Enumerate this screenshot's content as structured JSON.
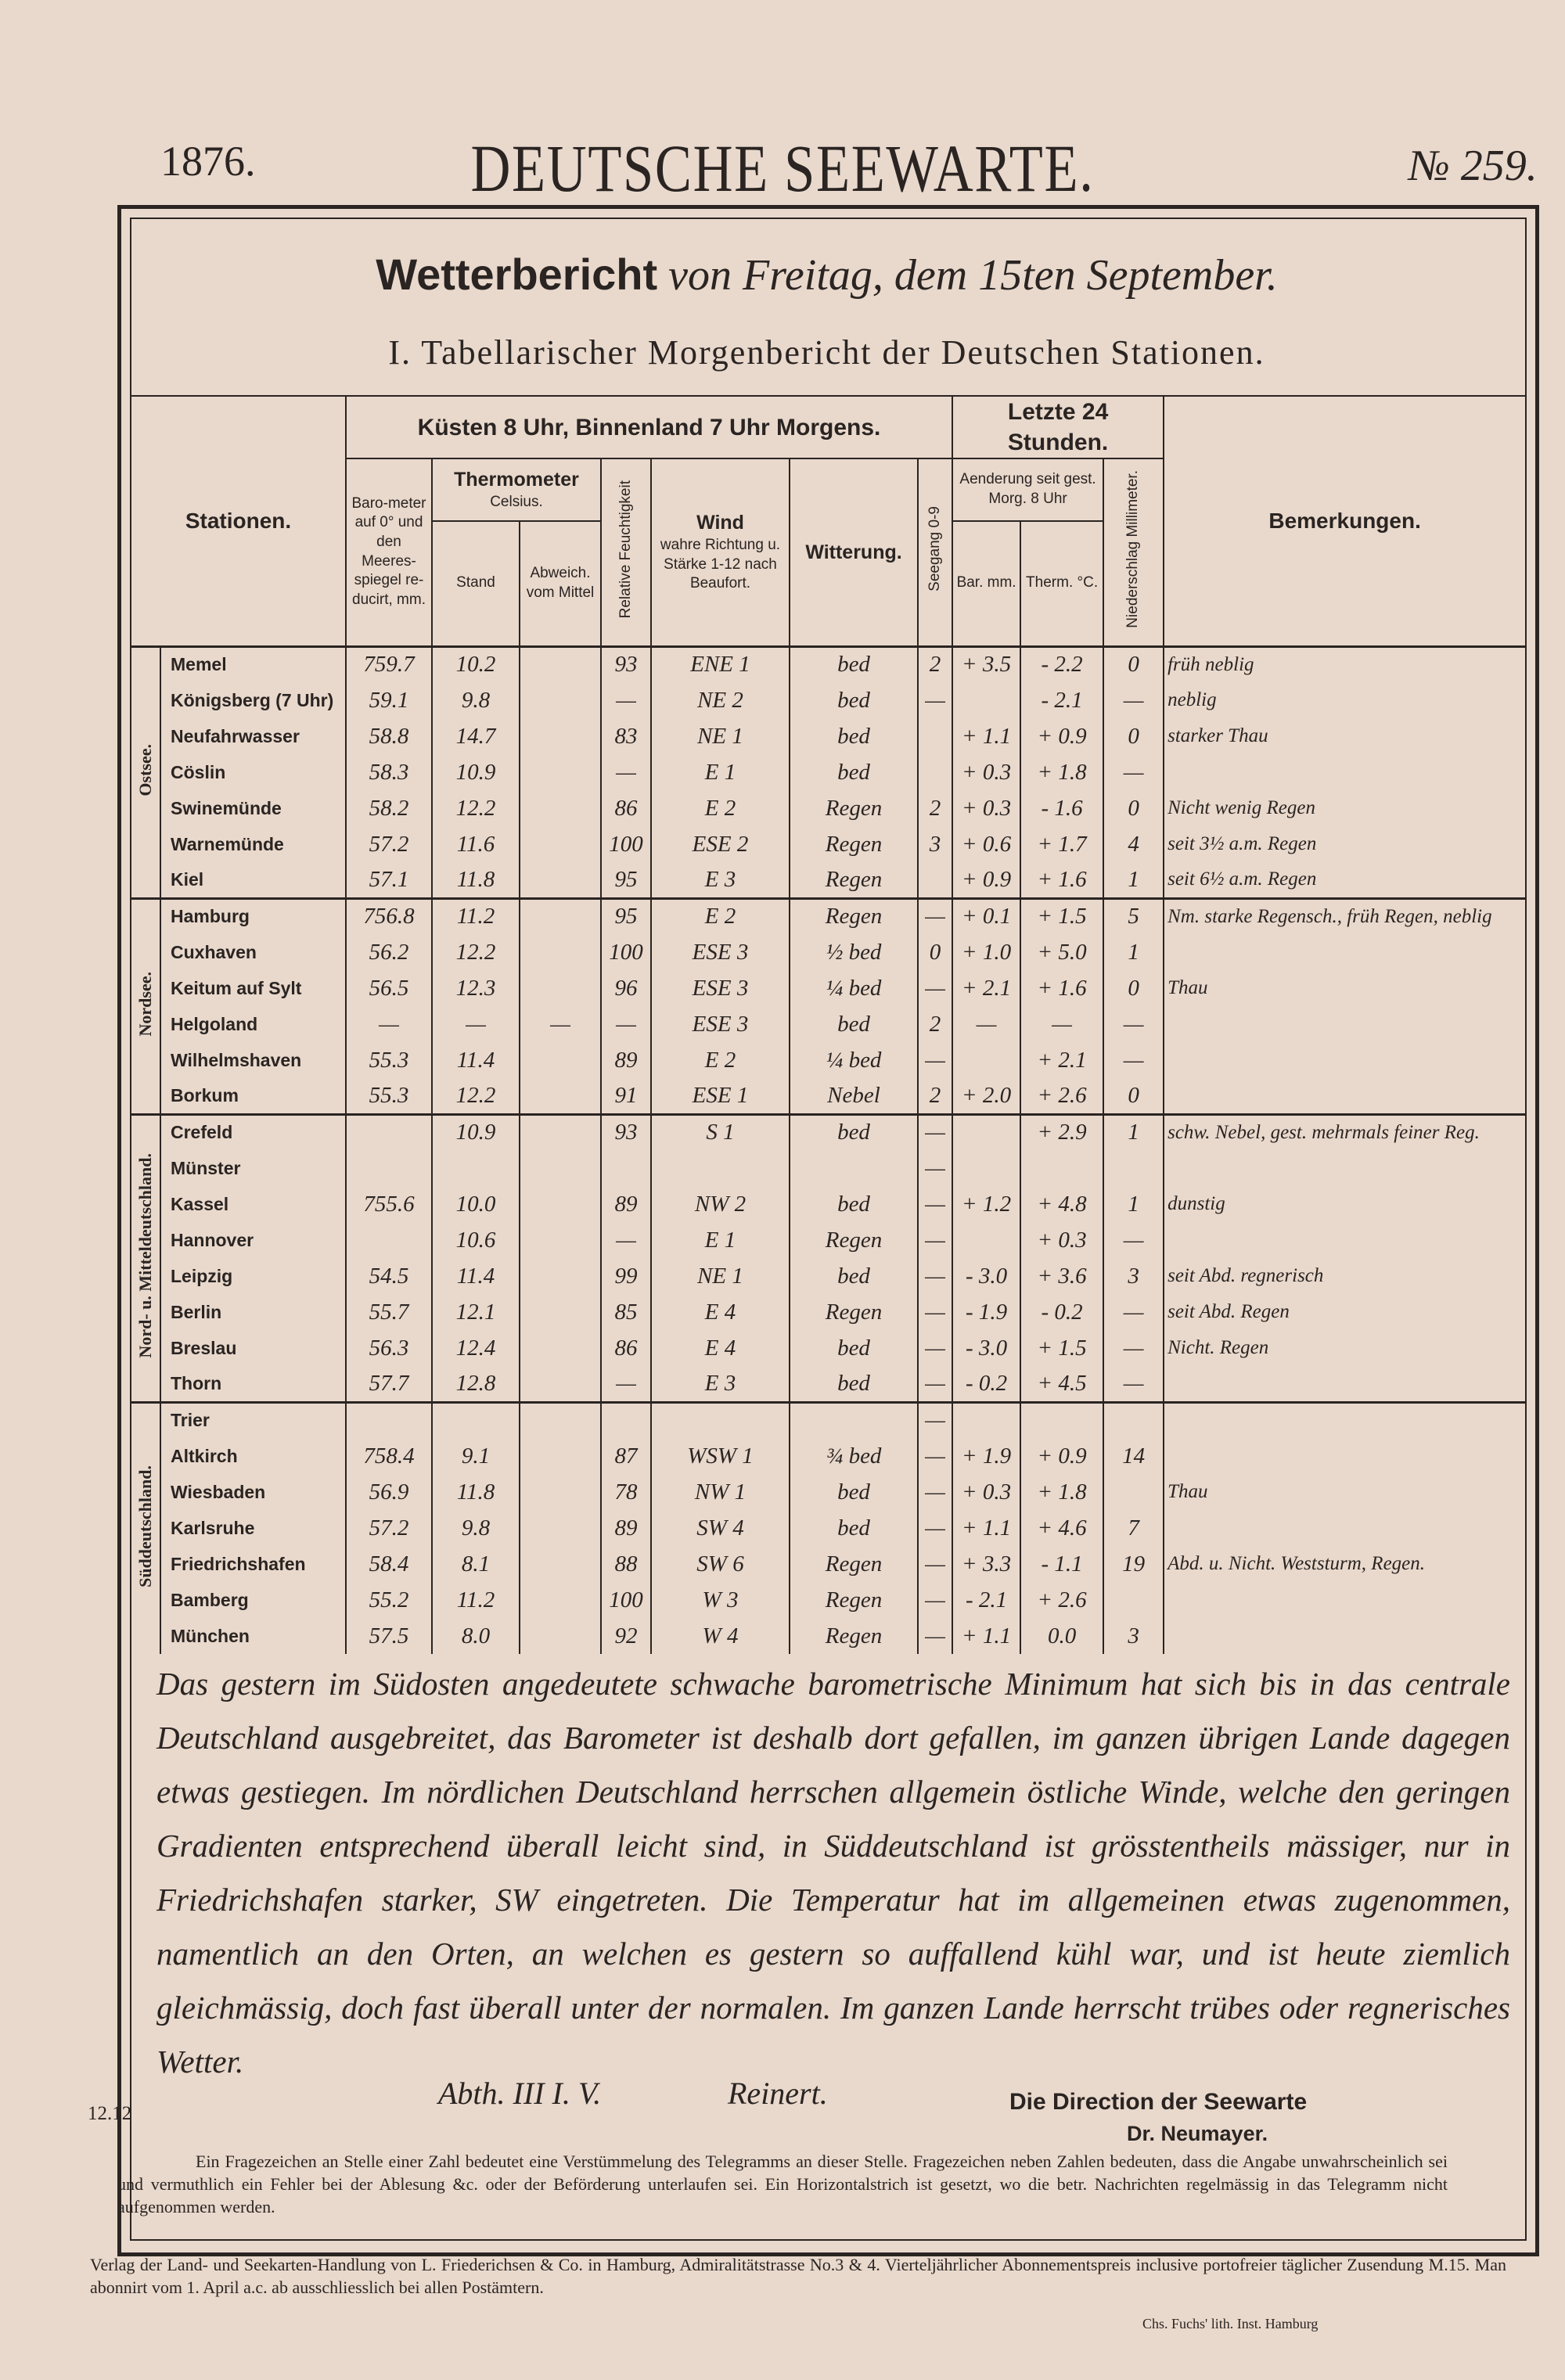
{
  "header": {
    "year": "1876.",
    "title": "DEUTSCHE SEEWARTE.",
    "number": "№ 259."
  },
  "report_title": {
    "label": "Wetterbericht",
    "text": "von Freitag, dem 15ten September."
  },
  "section_title": "I. Tabellarischer Morgenbericht der Deutschen Stationen.",
  "table": {
    "headers": {
      "stations": "Stationen.",
      "morning": "Küsten 8 Uhr, Binnenland 7 Uhr Morgens.",
      "last24": "Letzte 24 Stunden.",
      "barometer": "Baro-meter auf 0° und den Meeres-spiegel re-ducirt, mm.",
      "thermometer": "Thermometer",
      "celsius": "Celsius.",
      "stand": "Stand",
      "abweichung": "Abweich. vom Mittel",
      "humidity": "Relative Feuchtigkeit",
      "wind": "Wind",
      "wind_sub": "wahre Richtung u. Stärke 1-12 nach Beaufort.",
      "weather": "Witterung.",
      "sea": "Seegang 0-9",
      "change": "Aenderung seit gest. Morg. 8 Uhr",
      "change_bar": "Bar. mm.",
      "change_therm": "Therm. °C.",
      "precip": "Niederschlag Millimeter.",
      "remarks": "Bemerkungen."
    },
    "groups": [
      {
        "name": "Ostsee.",
        "rows": [
          [
            "Memel",
            "759.7",
            "10.2",
            null,
            "93",
            "ENE 1",
            "bed",
            "2",
            "+ 3.5",
            "- 2.2",
            "0",
            "früh neblig"
          ],
          [
            "Königsberg (7 Uhr)",
            "59.1",
            "9.8",
            null,
            "—",
            "NE 2",
            "bed",
            "—",
            null,
            "- 2.1",
            "—",
            "neblig"
          ],
          [
            "Neufahrwasser",
            "58.8",
            "14.7",
            null,
            "83",
            "NE 1",
            "bed",
            null,
            "+ 1.1",
            "+ 0.9",
            "0",
            "starker Thau"
          ],
          [
            "Cöslin",
            "58.3",
            "10.9",
            null,
            "—",
            "E 1",
            "bed",
            null,
            "+ 0.3",
            "+ 1.8",
            "—",
            null
          ],
          [
            "Swinemünde",
            "58.2",
            "12.2",
            null,
            "86",
            "E 2",
            "Regen",
            "2",
            "+ 0.3",
            "- 1.6",
            "0",
            "Nicht wenig Regen"
          ],
          [
            "Warnemünde",
            "57.2",
            "11.6",
            null,
            "100",
            "ESE 2",
            "Regen",
            "3",
            "+ 0.6",
            "+ 1.7",
            "4",
            "seit 3½ a.m. Regen"
          ],
          [
            "Kiel",
            "57.1",
            "11.8",
            null,
            "95",
            "E 3",
            "Regen",
            null,
            "+ 0.9",
            "+ 1.6",
            "1",
            "seit 6½ a.m. Regen"
          ]
        ]
      },
      {
        "name": "Nordsee.",
        "rows": [
          [
            "Hamburg",
            "756.8",
            "11.2",
            null,
            "95",
            "E 2",
            "Regen",
            "—",
            "+ 0.1",
            "+ 1.5",
            "5",
            "Nm. starke Regensch., früh Regen, neblig"
          ],
          [
            "Cuxhaven",
            "56.2",
            "12.2",
            null,
            "100",
            "ESE 3",
            "½ bed",
            "0",
            "+ 1.0",
            "+ 5.0",
            "1",
            null
          ],
          [
            "Keitum auf Sylt",
            "56.5",
            "12.3",
            null,
            "96",
            "ESE 3",
            "¼ bed",
            "—",
            "+ 2.1",
            "+ 1.6",
            "0",
            "Thau"
          ],
          [
            "Helgoland",
            "—",
            "—",
            "—",
            "—",
            "ESE 3",
            "bed",
            "2",
            "—",
            "—",
            "—",
            null
          ],
          [
            "Wilhelmshaven",
            "55.3",
            "11.4",
            null,
            "89",
            "E 2",
            "¼ bed",
            "—",
            null,
            "+ 2.1",
            "—",
            null
          ],
          [
            "Borkum",
            "55.3",
            "12.2",
            null,
            "91",
            "ESE 1",
            "Nebel",
            "2",
            "+ 2.0",
            "+ 2.6",
            "0",
            null
          ]
        ]
      },
      {
        "name": "Nord- u. Mitteldeutschland.",
        "rows": [
          [
            "Crefeld",
            null,
            "10.9",
            null,
            "93",
            "S 1",
            "bed",
            "—",
            null,
            "+ 2.9",
            "1",
            "schw. Nebel, gest. mehrmals feiner Reg."
          ],
          [
            "Münster",
            null,
            null,
            null,
            null,
            null,
            null,
            "—",
            null,
            null,
            null,
            null
          ],
          [
            "Kassel",
            "755.6",
            "10.0",
            null,
            "89",
            "NW 2",
            "bed",
            "—",
            "+ 1.2",
            "+ 4.8",
            "1",
            "dunstig"
          ],
          [
            "Hannover",
            null,
            "10.6",
            null,
            "—",
            "E 1",
            "Regen",
            "—",
            null,
            "+ 0.3",
            "—",
            null
          ],
          [
            "Leipzig",
            "54.5",
            "11.4",
            null,
            "99",
            "NE 1",
            "bed",
            "—",
            "- 3.0",
            "+ 3.6",
            "3",
            "seit Abd. regnerisch"
          ],
          [
            "Berlin",
            "55.7",
            "12.1",
            null,
            "85",
            "E 4",
            "Regen",
            "—",
            "- 1.9",
            "- 0.2",
            "—",
            "seit Abd. Regen"
          ],
          [
            "Breslau",
            "56.3",
            "12.4",
            null,
            "86",
            "E 4",
            "bed",
            "—",
            "- 3.0",
            "+ 1.5",
            "—",
            "Nicht. Regen"
          ],
          [
            "Thorn",
            "57.7",
            "12.8",
            null,
            "—",
            "E 3",
            "bed",
            "—",
            "- 0.2",
            "+ 4.5",
            "—",
            null
          ]
        ]
      },
      {
        "name": "Süddeutschland.",
        "rows": [
          [
            "Trier",
            null,
            null,
            null,
            null,
            null,
            null,
            "—",
            null,
            null,
            null,
            null
          ],
          [
            "Altkirch",
            "758.4",
            "9.1",
            null,
            "87",
            "WSW 1",
            "¾ bed",
            "—",
            "+ 1.9",
            "+ 0.9",
            "14",
            null
          ],
          [
            "Wiesbaden",
            "56.9",
            "11.8",
            null,
            "78",
            "NW 1",
            "bed",
            "—",
            "+ 0.3",
            "+ 1.8",
            null,
            "Thau"
          ],
          [
            "Karlsruhe",
            "57.2",
            "9.8",
            null,
            "89",
            "SW 4",
            "bed",
            "—",
            "+ 1.1",
            "+ 4.6",
            "7",
            null
          ],
          [
            "Friedrichshafen",
            "58.4",
            "8.1",
            null,
            "88",
            "SW 6",
            "Regen",
            "—",
            "+ 3.3",
            "- 1.1",
            "19",
            "Abd. u. Nicht. Weststurm, Regen."
          ],
          [
            "Bamberg",
            "55.2",
            "11.2",
            null,
            "100",
            "W 3",
            "Regen",
            "—",
            "- 2.1",
            "+ 2.6",
            null,
            null
          ],
          [
            "München",
            "57.5",
            "8.0",
            null,
            "92",
            "W 4",
            "Regen",
            "—",
            "+ 1.1",
            "0.0",
            "3",
            null
          ]
        ]
      }
    ]
  },
  "report": "Das gestern im Südosten angedeutete schwache barometrische Minimum hat sich bis in das centrale Deutschland ausgebreitet, das Barometer ist deshalb dort gefallen, im ganzen übrigen Lande dagegen etwas gestiegen. Im nördlichen Deutschland herrschen allgemein östliche Winde, welche den geringen Gradienten entsprechend überall leicht sind, in Süddeutschland ist grösstentheils mässiger, nur in Friedrichshafen starker, SW eingetreten. Die Temperatur hat im allgemeinen etwas zugenommen, namentlich an den Orten, an welchen es gestern so auffallend kühl war, und ist heute ziemlich gleichmässig, doch fast überall unter der normalen. Im ganzen Lande herrscht trübes oder regnerisches Wetter.",
  "signature": {
    "department": "Abth. III I. V.",
    "name": "Reinert."
  },
  "direction": "Die Direction der Seewarte",
  "director": "Dr. Neumayer.",
  "code": "12.12",
  "footnote": "Ein Fragezeichen an Stelle einer Zahl bedeutet eine Verstümmelung des Telegramms an dieser Stelle. Fragezeichen neben Zahlen bedeuten, dass die Angabe unwahrscheinlich sei und vermuthlich ein Fehler bei der Ablesung &c. oder der Beförderung unterlaufen sei. Ein Horizontalstrich ist gesetzt, wo die betr. Nachrichten regelmässig in das Telegramm nicht aufgenommen werden.",
  "publisher": "Verlag der Land- und Seekarten-Handlung von L. Friederichsen & Co. in Hamburg, Admiralitätstrasse No.3 & 4. Vierteljährlicher Abonnementspreis inclusive portofreier täglicher Zusendung M.15. Man abonnirt vom 1. April a.c. ab ausschliesslich bei allen Postämtern.",
  "lithographer": "Chs. Fuchs' lith. Inst. Hamburg"
}
